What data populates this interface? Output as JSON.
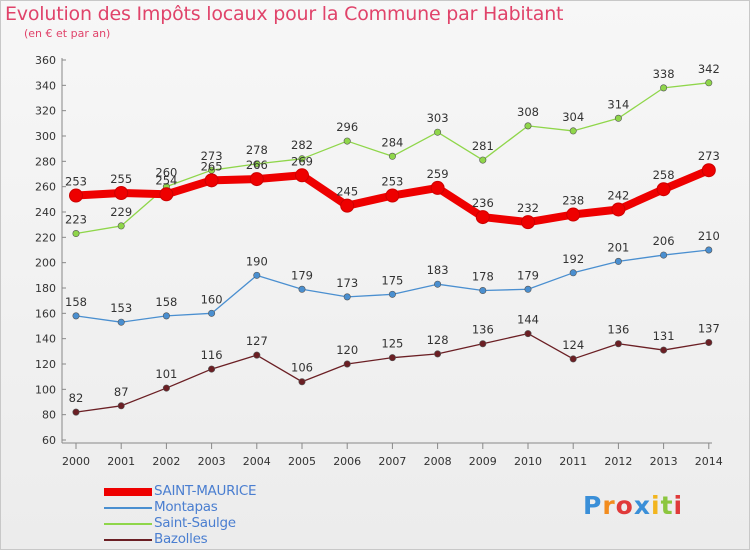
{
  "title": "Evolution des Impôts locaux pour la Commune par Habitant",
  "subtitle": "(en € et par an)",
  "logo": {
    "text": "Proxiti",
    "letters": [
      "P",
      "r",
      "o",
      "x",
      "i",
      "t",
      "i"
    ],
    "letter_colors": [
      "#3a8fd8",
      "#f28c1e",
      "#e03a3a",
      "#3a8fd8",
      "#f2b51e",
      "#8cc63f",
      "#e03a3a"
    ]
  },
  "chart_data": {
    "type": "line",
    "title": "Evolution des Impôts locaux pour la Commune par Habitant",
    "subtitle": "(en € et par an)",
    "categories": [
      "2000",
      "2001",
      "2002",
      "2003",
      "2004",
      "2005",
      "2006",
      "2007",
      "2008",
      "2009",
      "2010",
      "2011",
      "2012",
      "2013",
      "2014"
    ],
    "ylim": [
      60,
      360
    ],
    "yticks": [
      60,
      80,
      100,
      120,
      140,
      160,
      180,
      200,
      220,
      240,
      260,
      280,
      300,
      320,
      340,
      360
    ],
    "grid": false,
    "legend_position": "bottom-left",
    "series": [
      {
        "name": "Bazolles",
        "color": "#6b1f24",
        "values": [
          82,
          87,
          101,
          116,
          127,
          106,
          120,
          125,
          128,
          136,
          144,
          124,
          136,
          131,
          137
        ]
      },
      {
        "name": "Montapas",
        "color": "#4a8fd0",
        "values": [
          158,
          153,
          158,
          160,
          190,
          179,
          173,
          175,
          183,
          178,
          179,
          192,
          201,
          206,
          210
        ]
      },
      {
        "name": "Saint-Saulge",
        "color": "#8fd64a",
        "values": [
          223,
          229,
          260,
          273,
          278,
          282,
          296,
          284,
          303,
          281,
          308,
          304,
          314,
          338,
          342
        ]
      },
      {
        "name": "SAINT-MAURICE",
        "color": "#ee0000",
        "values": [
          253,
          255,
          254,
          265,
          266,
          269,
          245,
          253,
          259,
          236,
          232,
          238,
          242,
          258,
          273
        ]
      }
    ]
  },
  "legend": [
    {
      "name": "SAINT-MAURICE",
      "color": "#ee0000",
      "label_color": "#4a7ed0",
      "thickness": 8
    },
    {
      "name": "Montapas",
      "color": "#4a8fd0",
      "label_color": "#4a7ed0",
      "thickness": 2
    },
    {
      "name": "Saint-Saulge",
      "color": "#8fd64a",
      "label_color": "#4a7ed0",
      "thickness": 2
    },
    {
      "name": "Bazolles",
      "color": "#6b1f24",
      "label_color": "#4a7ed0",
      "thickness": 2
    }
  ]
}
